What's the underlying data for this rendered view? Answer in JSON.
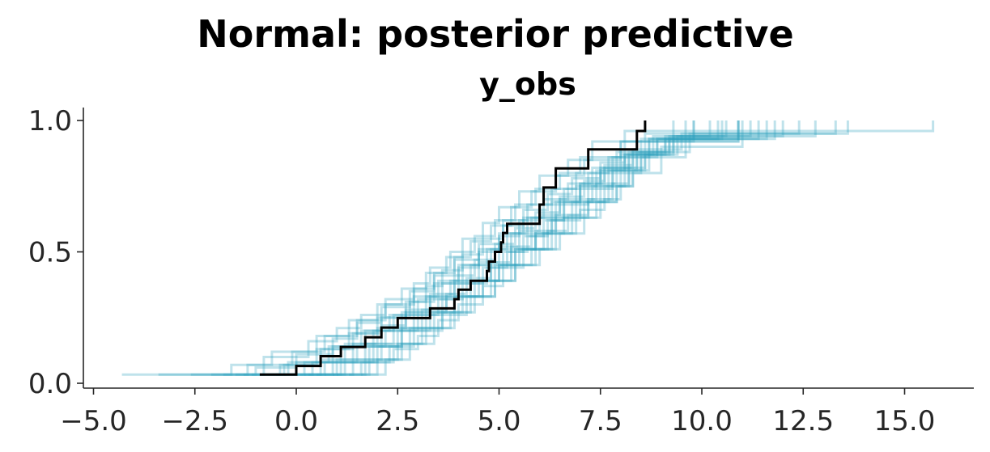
{
  "chart_data": {
    "type": "line",
    "title": "Normal: posterior predictive",
    "subtitle": "y_obs",
    "xlim": [
      -5.5,
      16.7
    ],
    "ylim": [
      -0.01,
      1.05
    ],
    "xticks": [
      -5.0,
      -2.5,
      0.0,
      2.5,
      5.0,
      7.5,
      10.0,
      12.5,
      15.0
    ],
    "xtick_labels": [
      "−5.0",
      "−2.5",
      "0.0",
      "2.5",
      "5.0",
      "7.5",
      "10.0",
      "12.5",
      "15.0"
    ],
    "yticks": [
      0.0,
      0.5,
      1.0
    ],
    "ytick_labels": [
      "0.0",
      "0.5",
      "1.0"
    ],
    "grid": false,
    "colors": {
      "predictive": "#2a9fbc",
      "observed": "#000000"
    },
    "series": [
      {
        "role": "observed",
        "x": [
          -0.9,
          0.0,
          0.6,
          1.1,
          1.7,
          2.1,
          2.5,
          3.3,
          3.9,
          4.0,
          4.3,
          4.7,
          4.75,
          4.9,
          5.05,
          5.1,
          5.2,
          6.0,
          6.1,
          6.4,
          7.2,
          8.4,
          8.6
        ],
        "y": [
          0.033,
          0.066,
          0.103,
          0.138,
          0.175,
          0.212,
          0.248,
          0.285,
          0.32,
          0.356,
          0.39,
          0.427,
          0.463,
          0.5,
          0.536,
          0.572,
          0.607,
          0.68,
          0.745,
          0.818,
          0.89,
          0.96,
          1.0
        ]
      },
      {
        "role": "predictive",
        "x": [
          -4.3,
          -0.8,
          0.3,
          1.0,
          1.6,
          2.2,
          2.9,
          3.3,
          3.8,
          4.4,
          4.9,
          5.4,
          5.9,
          6.5,
          7.0,
          8.0,
          10.9
        ],
        "y": [
          0.033,
          0.1,
          0.16,
          0.21,
          0.26,
          0.32,
          0.38,
          0.44,
          0.5,
          0.56,
          0.62,
          0.68,
          0.74,
          0.8,
          0.86,
          0.92,
          1.0
        ]
      },
      {
        "role": "predictive",
        "x": [
          -3.4,
          -1.6,
          -0.6,
          0.5,
          1.3,
          2.0,
          2.6,
          3.2,
          3.7,
          4.1,
          4.6,
          5.0,
          5.5,
          6.0,
          6.7,
          7.3,
          9.8
        ],
        "y": [
          0.033,
          0.07,
          0.12,
          0.18,
          0.24,
          0.3,
          0.36,
          0.42,
          0.48,
          0.55,
          0.61,
          0.67,
          0.73,
          0.79,
          0.85,
          0.92,
          1.0
        ]
      },
      {
        "role": "predictive",
        "x": [
          -2.1,
          -1.0,
          0.0,
          0.9,
          1.5,
          2.1,
          2.8,
          3.4,
          3.9,
          4.5,
          5.1,
          5.6,
          6.2,
          6.8,
          7.5,
          8.1,
          15.7
        ],
        "y": [
          0.033,
          0.06,
          0.11,
          0.17,
          0.23,
          0.29,
          0.35,
          0.41,
          0.47,
          0.53,
          0.6,
          0.66,
          0.72,
          0.78,
          0.84,
          0.96,
          1.0
        ]
      },
      {
        "role": "predictive",
        "x": [
          -1.3,
          -0.2,
          0.8,
          1.6,
          2.3,
          2.9,
          3.5,
          4.0,
          4.5,
          5.0,
          5.6,
          6.1,
          6.7,
          7.3,
          7.9,
          8.6,
          13.3
        ],
        "y": [
          0.033,
          0.08,
          0.14,
          0.2,
          0.26,
          0.33,
          0.39,
          0.45,
          0.51,
          0.57,
          0.63,
          0.7,
          0.76,
          0.82,
          0.88,
          0.95,
          1.0
        ]
      },
      {
        "role": "predictive",
        "x": [
          0.1,
          1.0,
          1.7,
          2.4,
          3.1,
          3.7,
          4.2,
          4.8,
          5.3,
          5.8,
          6.3,
          7.0,
          7.6,
          8.0,
          8.3,
          9.0,
          11.0
        ],
        "y": [
          0.033,
          0.09,
          0.15,
          0.21,
          0.28,
          0.34,
          0.4,
          0.46,
          0.52,
          0.57,
          0.62,
          0.66,
          0.7,
          0.75,
          0.8,
          0.9,
          1.0
        ]
      },
      {
        "role": "predictive",
        "x": [
          -0.5,
          0.6,
          1.4,
          2.1,
          2.7,
          3.3,
          3.9,
          4.4,
          4.9,
          5.4,
          5.9,
          6.5,
          7.1,
          7.6,
          8.3,
          9.5,
          12.4
        ],
        "y": [
          0.033,
          0.09,
          0.15,
          0.22,
          0.28,
          0.34,
          0.41,
          0.47,
          0.53,
          0.59,
          0.65,
          0.71,
          0.77,
          0.83,
          0.89,
          0.95,
          1.0
        ]
      },
      {
        "role": "predictive",
        "x": [
          1.0,
          1.8,
          2.4,
          3.0,
          3.5,
          4.0,
          4.6,
          5.1,
          5.6,
          6.2,
          6.7,
          7.2,
          7.8,
          8.2,
          8.6,
          9.2,
          10.6
        ],
        "y": [
          0.033,
          0.08,
          0.13,
          0.18,
          0.24,
          0.3,
          0.37,
          0.44,
          0.51,
          0.58,
          0.64,
          0.7,
          0.76,
          0.82,
          0.88,
          0.94,
          1.0
        ]
      },
      {
        "role": "predictive",
        "x": [
          -1.8,
          -0.4,
          0.5,
          1.3,
          2.0,
          2.7,
          3.2,
          3.6,
          4.1,
          4.6,
          5.1,
          5.7,
          6.3,
          6.9,
          7.7,
          8.9,
          11.8
        ],
        "y": [
          0.033,
          0.07,
          0.13,
          0.19,
          0.25,
          0.31,
          0.37,
          0.43,
          0.49,
          0.55,
          0.62,
          0.68,
          0.74,
          0.8,
          0.86,
          0.93,
          1.0
        ]
      },
      {
        "role": "predictive",
        "x": [
          -0.1,
          0.9,
          1.8,
          2.5,
          3.0,
          3.6,
          4.1,
          4.7,
          5.2,
          5.7,
          6.2,
          6.6,
          7.0,
          7.4,
          8.0,
          8.8,
          10.2
        ],
        "y": [
          0.033,
          0.08,
          0.14,
          0.2,
          0.26,
          0.32,
          0.38,
          0.44,
          0.5,
          0.56,
          0.62,
          0.69,
          0.75,
          0.81,
          0.87,
          0.94,
          1.0
        ]
      },
      {
        "role": "predictive",
        "x": [
          0.5,
          1.4,
          2.1,
          2.8,
          3.4,
          3.9,
          4.4,
          4.9,
          5.4,
          5.9,
          6.4,
          6.9,
          7.5,
          7.8,
          8.1,
          8.5,
          9.3
        ],
        "y": [
          0.033,
          0.09,
          0.15,
          0.21,
          0.27,
          0.33,
          0.39,
          0.45,
          0.51,
          0.57,
          0.63,
          0.69,
          0.75,
          0.81,
          0.87,
          0.93,
          1.0
        ]
      },
      {
        "role": "predictive",
        "x": [
          -2.6,
          -1.2,
          -0.1,
          0.7,
          1.5,
          2.2,
          2.9,
          3.4,
          3.9,
          4.3,
          4.8,
          5.3,
          5.8,
          6.4,
          7.1,
          8.0,
          10.9
        ],
        "y": [
          0.033,
          0.07,
          0.12,
          0.18,
          0.24,
          0.3,
          0.36,
          0.42,
          0.48,
          0.54,
          0.6,
          0.67,
          0.73,
          0.79,
          0.85,
          0.92,
          1.0
        ]
      },
      {
        "role": "predictive",
        "x": [
          0.7,
          1.6,
          2.3,
          2.9,
          3.6,
          4.2,
          4.8,
          5.3,
          5.8,
          6.3,
          6.8,
          7.2,
          7.7,
          8.1,
          8.4,
          8.9,
          9.8
        ],
        "y": [
          0.033,
          0.08,
          0.14,
          0.2,
          0.26,
          0.33,
          0.39,
          0.45,
          0.51,
          0.57,
          0.63,
          0.69,
          0.75,
          0.81,
          0.87,
          0.93,
          1.0
        ]
      },
      {
        "role": "predictive",
        "x": [
          -0.9,
          0.2,
          1.1,
          1.9,
          2.6,
          3.2,
          3.8,
          4.3,
          4.8,
          5.3,
          5.8,
          6.4,
          7.0,
          7.5,
          8.2,
          9.3,
          12.8
        ],
        "y": [
          0.033,
          0.08,
          0.14,
          0.2,
          0.27,
          0.33,
          0.39,
          0.45,
          0.51,
          0.57,
          0.63,
          0.69,
          0.76,
          0.82,
          0.88,
          0.94,
          1.0
        ]
      },
      {
        "role": "predictive",
        "x": [
          1.3,
          2.0,
          2.6,
          3.2,
          3.8,
          4.3,
          4.9,
          5.4,
          6.0,
          6.5,
          7.1,
          7.5,
          7.9,
          8.2,
          8.6,
          9.1,
          10.4
        ],
        "y": [
          0.033,
          0.09,
          0.15,
          0.21,
          0.27,
          0.33,
          0.39,
          0.45,
          0.51,
          0.57,
          0.63,
          0.69,
          0.75,
          0.81,
          0.87,
          0.93,
          1.0
        ]
      },
      {
        "role": "predictive",
        "x": [
          -1.5,
          -0.3,
          0.6,
          1.4,
          2.1,
          2.8,
          3.4,
          4.0,
          4.5,
          5.0,
          5.5,
          6.0,
          6.6,
          7.2,
          7.8,
          8.7,
          11.4
        ],
        "y": [
          0.033,
          0.07,
          0.13,
          0.19,
          0.25,
          0.31,
          0.38,
          0.44,
          0.5,
          0.56,
          0.62,
          0.68,
          0.74,
          0.8,
          0.86,
          0.93,
          1.0
        ]
      },
      {
        "role": "predictive",
        "x": [
          0.3,
          1.2,
          2.0,
          2.6,
          3.2,
          3.7,
          4.3,
          4.8,
          5.3,
          5.9,
          6.4,
          7.0,
          7.4,
          7.9,
          8.4,
          9.7,
          13.6
        ],
        "y": [
          0.033,
          0.08,
          0.14,
          0.21,
          0.27,
          0.33,
          0.39,
          0.45,
          0.51,
          0.58,
          0.64,
          0.7,
          0.76,
          0.82,
          0.88,
          0.95,
          1.0
        ]
      },
      {
        "role": "predictive",
        "x": [
          -0.7,
          0.4,
          1.2,
          2.0,
          2.7,
          3.3,
          3.9,
          4.5,
          5.0,
          5.5,
          6.0,
          6.5,
          7.0,
          7.6,
          8.3,
          9.1,
          11.2
        ],
        "y": [
          0.033,
          0.08,
          0.15,
          0.21,
          0.27,
          0.33,
          0.39,
          0.46,
          0.52,
          0.58,
          0.64,
          0.7,
          0.76,
          0.82,
          0.88,
          0.94,
          1.0
        ]
      },
      {
        "role": "predictive",
        "x": [
          0.9,
          1.7,
          2.5,
          3.1,
          3.6,
          4.1,
          4.6,
          5.0,
          5.4,
          5.9,
          6.3,
          6.8,
          7.3,
          7.7,
          8.1,
          8.7,
          9.6
        ],
        "y": [
          0.033,
          0.09,
          0.15,
          0.21,
          0.27,
          0.33,
          0.39,
          0.45,
          0.51,
          0.57,
          0.63,
          0.69,
          0.75,
          0.81,
          0.87,
          0.93,
          1.0
        ]
      },
      {
        "role": "predictive",
        "x": [
          -1.1,
          0.0,
          0.9,
          1.7,
          2.4,
          3.0,
          3.6,
          4.1,
          4.7,
          5.2,
          5.7,
          6.3,
          6.9,
          7.5,
          8.2,
          9.4,
          12.0
        ],
        "y": [
          0.033,
          0.08,
          0.14,
          0.2,
          0.26,
          0.32,
          0.38,
          0.45,
          0.51,
          0.57,
          0.63,
          0.69,
          0.75,
          0.81,
          0.87,
          0.94,
          1.0
        ]
      },
      {
        "role": "predictive",
        "x": [
          1.6,
          2.2,
          2.8,
          3.4,
          3.9,
          4.4,
          4.9,
          5.4,
          5.9,
          6.4,
          6.9,
          7.4,
          7.9,
          8.3,
          8.7,
          9.3,
          10.9
        ],
        "y": [
          0.033,
          0.09,
          0.15,
          0.21,
          0.27,
          0.33,
          0.39,
          0.45,
          0.51,
          0.57,
          0.63,
          0.69,
          0.75,
          0.81,
          0.87,
          0.93,
          1.0
        ]
      },
      {
        "role": "predictive",
        "x": [
          -0.3,
          0.7,
          1.5,
          2.2,
          2.9,
          3.5,
          4.0,
          4.6,
          5.1,
          5.6,
          6.1,
          6.6,
          7.2,
          7.8,
          8.5,
          9.6,
          11.6
        ],
        "y": [
          0.033,
          0.08,
          0.14,
          0.2,
          0.26,
          0.32,
          0.38,
          0.44,
          0.5,
          0.56,
          0.62,
          0.68,
          0.74,
          0.8,
          0.86,
          0.93,
          1.0
        ]
      },
      {
        "role": "predictive",
        "x": [
          0.2,
          1.1,
          1.9,
          2.6,
          3.3,
          3.9,
          4.5,
          5.0,
          5.5,
          6.1,
          6.6,
          7.1,
          7.6,
          8.0,
          8.5,
          9.2,
          10.5
        ],
        "y": [
          0.033,
          0.08,
          0.14,
          0.2,
          0.27,
          0.33,
          0.39,
          0.45,
          0.51,
          0.57,
          0.63,
          0.69,
          0.75,
          0.81,
          0.87,
          0.93,
          1.0
        ]
      }
    ]
  }
}
